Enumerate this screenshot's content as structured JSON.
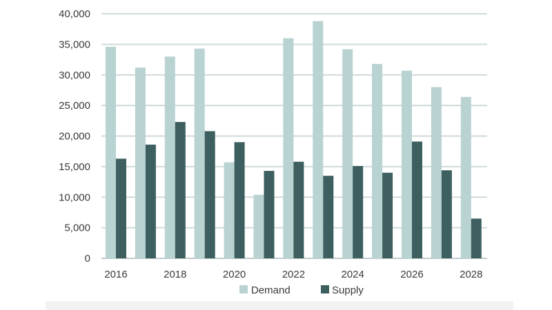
{
  "chart_data": {
    "type": "bar",
    "title": "",
    "xlabel": "",
    "ylabel": "",
    "ylim": [
      0,
      40000
    ],
    "yticks": [
      "0",
      "5,000",
      "10,000",
      "15,000",
      "20,000",
      "25,000",
      "30,000",
      "35,000",
      "40,000"
    ],
    "ytick_values": [
      0,
      5000,
      10000,
      15000,
      20000,
      25000,
      30000,
      35000,
      40000
    ],
    "categories": [
      "2016",
      "2017",
      "2018",
      "2019",
      "2020",
      "2021",
      "2022",
      "2023",
      "2024",
      "2025",
      "2026",
      "2027",
      "2028"
    ],
    "xtick_labels": [
      "2016",
      "",
      "2018",
      "",
      "2020",
      "",
      "2022",
      "",
      "2024",
      "",
      "2026",
      "",
      "2028"
    ],
    "series": [
      {
        "name": "Demand",
        "color": "#b9d2d2",
        "values": [
          34600,
          31200,
          33000,
          34300,
          15700,
          10400,
          36000,
          38800,
          34200,
          31800,
          30700,
          28000,
          26400
        ]
      },
      {
        "name": "Supply",
        "color": "#3e5f5f",
        "values": [
          16300,
          18600,
          22300,
          20800,
          19000,
          14300,
          15800,
          13500,
          15100,
          14000,
          19100,
          14400,
          6500
        ]
      }
    ],
    "grid": true,
    "legend": "bottom-center"
  }
}
